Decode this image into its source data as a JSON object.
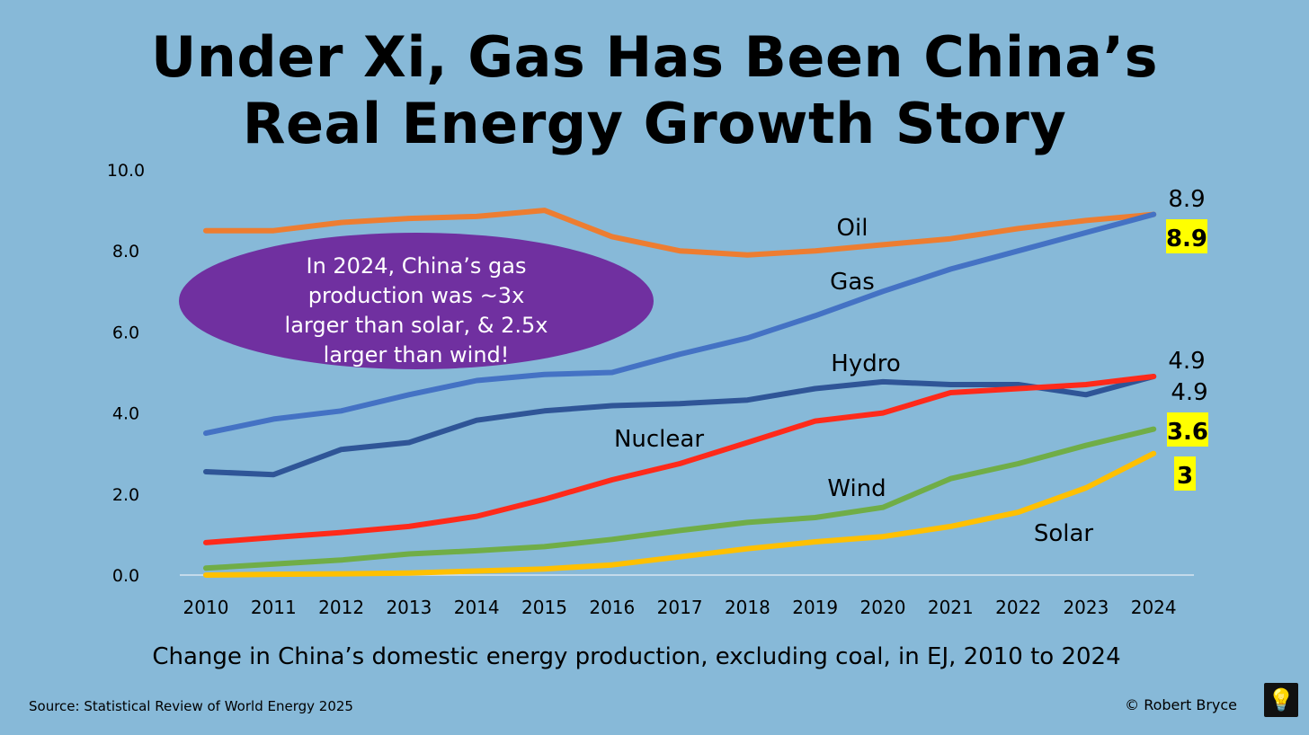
{
  "title_line1": "Under Xi, Gas Has Been China’s",
  "title_line2": "Real Energy Growth Story",
  "subtitle": "Change in China’s domestic energy production, excluding coal, in EJ, 2010 to 2024",
  "source": "Source: Statistical Review of World Energy 2025",
  "copyright": "© Robert Bryce",
  "logo_icon": "lightbulb-icon",
  "callout": [
    "In 2024, China’s gas",
    "production was ~3x",
    "larger than solar, & 2.5x",
    "larger than wind!"
  ],
  "colors": {
    "background": "#87b9d8",
    "callout": "#7030a0",
    "highlight": "#ffff00"
  },
  "chart_data": {
    "type": "line",
    "title": "Under Xi, Gas Has Been China’s Real Energy Growth Story",
    "xlabel": "",
    "ylabel": "EJ",
    "ylim": [
      0,
      10
    ],
    "yticks": [
      "0.0",
      "2.0",
      "4.0",
      "6.0",
      "8.0",
      "10.0"
    ],
    "x": [
      "2010",
      "2011",
      "2012",
      "2013",
      "2014",
      "2015",
      "2016",
      "2017",
      "2018",
      "2019",
      "2020",
      "2021",
      "2022",
      "2023",
      "2024"
    ],
    "series": [
      {
        "name": "Oil",
        "color": "#ed7d31",
        "values": [
          8.5,
          8.5,
          8.7,
          8.8,
          8.85,
          9.0,
          8.35,
          8.0,
          7.9,
          8.0,
          8.15,
          8.3,
          8.55,
          8.75,
          8.9
        ]
      },
      {
        "name": "Gas",
        "color": "#4472c4",
        "values": [
          3.5,
          3.85,
          4.05,
          4.45,
          4.8,
          4.95,
          5.0,
          5.45,
          5.85,
          6.4,
          7.0,
          7.55,
          8.0,
          8.45,
          8.9
        ]
      },
      {
        "name": "Hydro",
        "color": "#2f5597",
        "values": [
          2.55,
          2.48,
          3.1,
          3.27,
          3.82,
          4.05,
          4.18,
          4.23,
          4.32,
          4.6,
          4.77,
          4.7,
          4.7,
          4.45,
          4.9
        ]
      },
      {
        "name": "Nuclear",
        "color": "#ff2a1a",
        "values": [
          0.8,
          0.93,
          1.05,
          1.2,
          1.45,
          1.87,
          2.35,
          2.75,
          3.27,
          3.8,
          4.0,
          4.5,
          4.6,
          4.7,
          4.9
        ]
      },
      {
        "name": "Wind",
        "color": "#70ad47",
        "values": [
          0.17,
          0.27,
          0.37,
          0.52,
          0.6,
          0.7,
          0.88,
          1.1,
          1.3,
          1.42,
          1.67,
          2.38,
          2.75,
          3.2,
          3.6
        ]
      },
      {
        "name": "Solar",
        "color": "#ffc000",
        "values": [
          0.0,
          0.02,
          0.03,
          0.05,
          0.1,
          0.15,
          0.25,
          0.45,
          0.65,
          0.82,
          0.95,
          1.2,
          1.55,
          2.15,
          3.0
        ]
      }
    ],
    "series_labels": [
      {
        "text": "Oil"
      },
      {
        "text": "Gas"
      },
      {
        "text": "Hydro"
      },
      {
        "text": "Nuclear"
      },
      {
        "text": "Wind"
      },
      {
        "text": "Solar"
      }
    ],
    "end_labels": [
      {
        "text": "8.9",
        "highlighted": false
      },
      {
        "text": "8.9",
        "highlighted": true
      },
      {
        "text": "4.9",
        "highlighted": false
      },
      {
        "text": "4.9",
        "highlighted": false
      },
      {
        "text": "3.6",
        "highlighted": true
      },
      {
        "text": "3",
        "highlighted": true
      }
    ]
  }
}
